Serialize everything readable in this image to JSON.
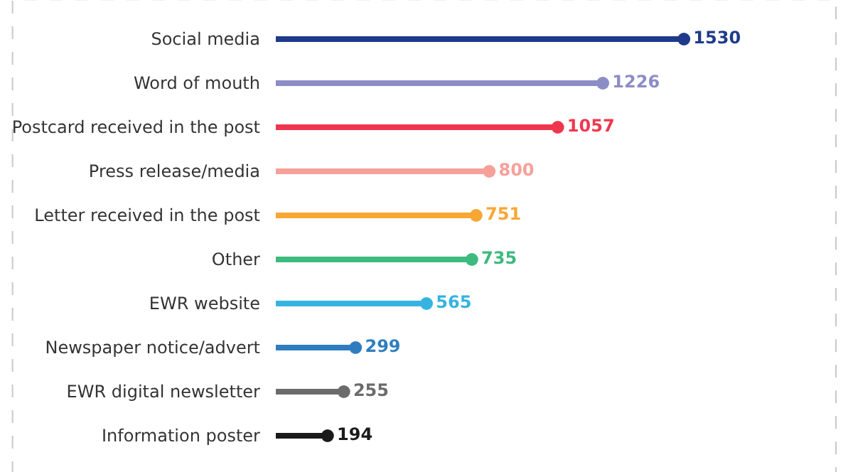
{
  "chart_data": {
    "type": "lollipop",
    "orientation": "horizontal",
    "categories": [
      "Social media",
      "Word of mouth",
      "Postcard received in the post",
      "Press release/media",
      "Letter received in the post",
      "Other",
      "EWR website",
      "Newspaper notice/advert",
      "EWR digital newsletter",
      "Information poster"
    ],
    "values": [
      1530,
      1226,
      1057,
      800,
      751,
      735,
      565,
      299,
      255,
      194
    ],
    "colors": [
      "#1e3a8a",
      "#8c8cc6",
      "#f0364e",
      "#f7a09a",
      "#f7a733",
      "#3dba7e",
      "#36b3e0",
      "#2f7dbf",
      "#6b6b6b",
      "#1a1a1a"
    ],
    "xlim": [
      0,
      2100
    ],
    "data_labels": true,
    "tick_labels": "y",
    "marker": "circle"
  }
}
